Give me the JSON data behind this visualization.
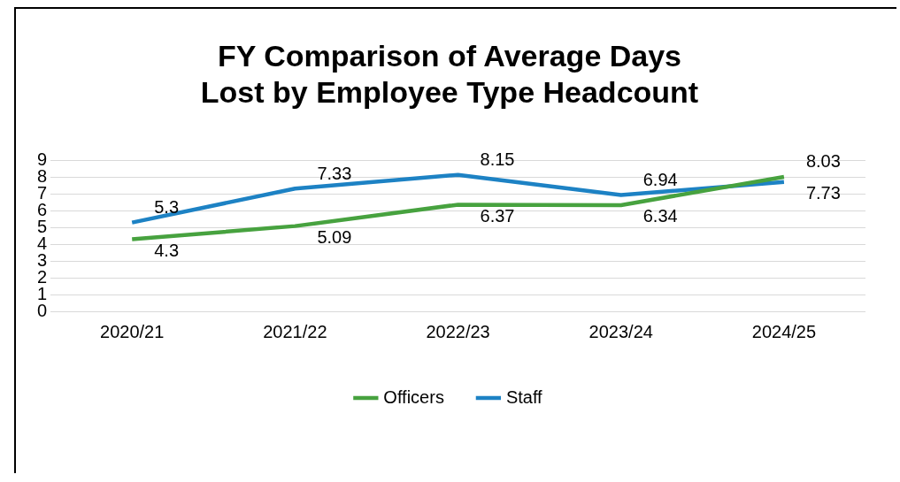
{
  "chart_data": {
    "type": "line",
    "title": "FY Comparison of Average Days Lost by Employee Type Headcount",
    "categories": [
      "2020/21",
      "2021/22",
      "2022/23",
      "2023/24",
      "2024/25"
    ],
    "series": [
      {
        "name": "Officers",
        "color": "#47a23f",
        "values": [
          4.3,
          5.09,
          6.37,
          6.34,
          8.03
        ]
      },
      {
        "name": "Staff",
        "color": "#1d82c4",
        "values": [
          5.3,
          7.33,
          8.15,
          6.94,
          7.73
        ]
      }
    ],
    "ylim": [
      0,
      9
    ],
    "yticks": [
      0,
      1,
      2,
      3,
      4,
      5,
      6,
      7,
      8,
      9
    ],
    "grid": "y",
    "legend": "bottom",
    "data_labels": true,
    "marker": "none",
    "line_style": "solid"
  }
}
